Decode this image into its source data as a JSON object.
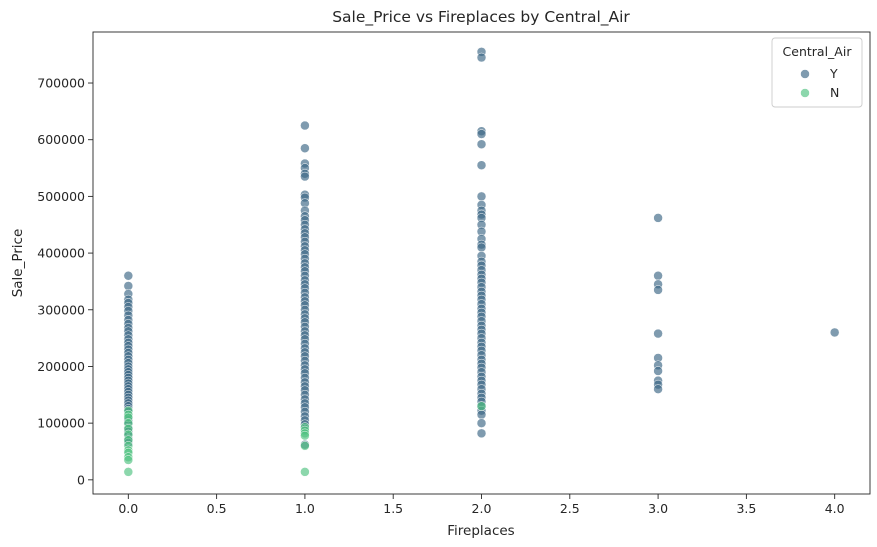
{
  "chart_data": {
    "type": "scatter",
    "title": "Sale_Price vs Fireplaces by Central_Air",
    "xlabel": "Fireplaces",
    "ylabel": "Sale_Price",
    "xlim": [
      -0.2,
      4.2
    ],
    "ylim": [
      -25000,
      790000
    ],
    "xticks": [
      "0.0",
      "0.5",
      "1.0",
      "1.5",
      "2.0",
      "2.5",
      "3.0",
      "3.5",
      "4.0"
    ],
    "xtick_values": [
      0,
      0.5,
      1,
      1.5,
      2,
      2.5,
      3,
      3.5,
      4
    ],
    "yticks": [
      "0",
      "100000",
      "200000",
      "300000",
      "400000",
      "500000",
      "600000",
      "700000"
    ],
    "ytick_values": [
      0,
      100000,
      200000,
      300000,
      400000,
      500000,
      600000,
      700000
    ],
    "grid": false,
    "legend": {
      "title": "Central_Air",
      "placement": "top-right"
    },
    "series": [
      {
        "name": "Y",
        "color": "#3b6684",
        "points": [
          [
            0,
            360000
          ],
          [
            0,
            342000
          ],
          [
            0,
            328000
          ],
          [
            0,
            318000
          ],
          [
            0,
            312000
          ],
          [
            0,
            305000
          ],
          [
            0,
            298000
          ],
          [
            0,
            290000
          ],
          [
            0,
            282000
          ],
          [
            0,
            275000
          ],
          [
            0,
            268000
          ],
          [
            0,
            262000
          ],
          [
            0,
            255000
          ],
          [
            0,
            248000
          ],
          [
            0,
            242000
          ],
          [
            0,
            236000
          ],
          [
            0,
            230000
          ],
          [
            0,
            224000
          ],
          [
            0,
            218000
          ],
          [
            0,
            212000
          ],
          [
            0,
            206000
          ],
          [
            0,
            200000
          ],
          [
            0,
            195000
          ],
          [
            0,
            190000
          ],
          [
            0,
            185000
          ],
          [
            0,
            180000
          ],
          [
            0,
            175000
          ],
          [
            0,
            170000
          ],
          [
            0,
            165000
          ],
          [
            0,
            160000
          ],
          [
            0,
            155000
          ],
          [
            0,
            150000
          ],
          [
            0,
            145000
          ],
          [
            0,
            140000
          ],
          [
            0,
            135000
          ],
          [
            0,
            130000
          ],
          [
            0,
            125000
          ],
          [
            0,
            120000
          ],
          [
            0,
            112000
          ],
          [
            0,
            105000
          ],
          [
            0,
            98000
          ],
          [
            0,
            92000
          ],
          [
            0,
            85000
          ],
          [
            0,
            78000
          ],
          [
            0,
            72000
          ],
          [
            0,
            65000
          ],
          [
            1,
            625000
          ],
          [
            1,
            585000
          ],
          [
            1,
            558000
          ],
          [
            1,
            550000
          ],
          [
            1,
            540000
          ],
          [
            1,
            535000
          ],
          [
            1,
            503000
          ],
          [
            1,
            498000
          ],
          [
            1,
            488000
          ],
          [
            1,
            475000
          ],
          [
            1,
            465000
          ],
          [
            1,
            458000
          ],
          [
            1,
            450000
          ],
          [
            1,
            442000
          ],
          [
            1,
            435000
          ],
          [
            1,
            428000
          ],
          [
            1,
            420000
          ],
          [
            1,
            412000
          ],
          [
            1,
            405000
          ],
          [
            1,
            398000
          ],
          [
            1,
            390000
          ],
          [
            1,
            382000
          ],
          [
            1,
            375000
          ],
          [
            1,
            368000
          ],
          [
            1,
            360000
          ],
          [
            1,
            352000
          ],
          [
            1,
            345000
          ],
          [
            1,
            338000
          ],
          [
            1,
            330000
          ],
          [
            1,
            322000
          ],
          [
            1,
            315000
          ],
          [
            1,
            308000
          ],
          [
            1,
            300000
          ],
          [
            1,
            292000
          ],
          [
            1,
            285000
          ],
          [
            1,
            278000
          ],
          [
            1,
            270000
          ],
          [
            1,
            262000
          ],
          [
            1,
            255000
          ],
          [
            1,
            248000
          ],
          [
            1,
            240000
          ],
          [
            1,
            232000
          ],
          [
            1,
            225000
          ],
          [
            1,
            218000
          ],
          [
            1,
            210000
          ],
          [
            1,
            202000
          ],
          [
            1,
            195000
          ],
          [
            1,
            188000
          ],
          [
            1,
            180000
          ],
          [
            1,
            172000
          ],
          [
            1,
            165000
          ],
          [
            1,
            158000
          ],
          [
            1,
            150000
          ],
          [
            1,
            142000
          ],
          [
            1,
            135000
          ],
          [
            1,
            128000
          ],
          [
            1,
            120000
          ],
          [
            1,
            112000
          ],
          [
            1,
            105000
          ],
          [
            1,
            98000
          ],
          [
            1,
            90000
          ],
          [
            1,
            62000
          ],
          [
            2,
            755000
          ],
          [
            2,
            745000
          ],
          [
            2,
            615000
          ],
          [
            2,
            610000
          ],
          [
            2,
            592000
          ],
          [
            2,
            555000
          ],
          [
            2,
            500000
          ],
          [
            2,
            485000
          ],
          [
            2,
            475000
          ],
          [
            2,
            468000
          ],
          [
            2,
            462000
          ],
          [
            2,
            450000
          ],
          [
            2,
            438000
          ],
          [
            2,
            425000
          ],
          [
            2,
            415000
          ],
          [
            2,
            410000
          ],
          [
            2,
            395000
          ],
          [
            2,
            385000
          ],
          [
            2,
            378000
          ],
          [
            2,
            370000
          ],
          [
            2,
            362000
          ],
          [
            2,
            355000
          ],
          [
            2,
            348000
          ],
          [
            2,
            340000
          ],
          [
            2,
            332000
          ],
          [
            2,
            325000
          ],
          [
            2,
            318000
          ],
          [
            2,
            310000
          ],
          [
            2,
            302000
          ],
          [
            2,
            295000
          ],
          [
            2,
            288000
          ],
          [
            2,
            280000
          ],
          [
            2,
            272000
          ],
          [
            2,
            265000
          ],
          [
            2,
            258000
          ],
          [
            2,
            250000
          ],
          [
            2,
            242000
          ],
          [
            2,
            235000
          ],
          [
            2,
            228000
          ],
          [
            2,
            220000
          ],
          [
            2,
            212000
          ],
          [
            2,
            205000
          ],
          [
            2,
            198000
          ],
          [
            2,
            190000
          ],
          [
            2,
            182000
          ],
          [
            2,
            175000
          ],
          [
            2,
            168000
          ],
          [
            2,
            160000
          ],
          [
            2,
            152000
          ],
          [
            2,
            145000
          ],
          [
            2,
            138000
          ],
          [
            2,
            130000
          ],
          [
            2,
            122000
          ],
          [
            2,
            115000
          ],
          [
            2,
            100000
          ],
          [
            2,
            82000
          ],
          [
            3,
            462000
          ],
          [
            3,
            360000
          ],
          [
            3,
            345000
          ],
          [
            3,
            335000
          ],
          [
            3,
            258000
          ],
          [
            3,
            215000
          ],
          [
            3,
            202000
          ],
          [
            3,
            192000
          ],
          [
            3,
            175000
          ],
          [
            3,
            168000
          ],
          [
            3,
            160000
          ],
          [
            4,
            260000
          ]
        ]
      },
      {
        "name": "N",
        "color": "#4ec17f",
        "points": [
          [
            0,
            122000
          ],
          [
            0,
            115000
          ],
          [
            0,
            110000
          ],
          [
            0,
            100000
          ],
          [
            0,
            90000
          ],
          [
            0,
            80000
          ],
          [
            0,
            70000
          ],
          [
            0,
            60000
          ],
          [
            0,
            52000
          ],
          [
            0,
            48000
          ],
          [
            0,
            40000
          ],
          [
            0,
            35000
          ],
          [
            0,
            14000
          ],
          [
            1,
            93000
          ],
          [
            1,
            87000
          ],
          [
            1,
            82000
          ],
          [
            1,
            78000
          ],
          [
            1,
            60000
          ],
          [
            1,
            14000
          ],
          [
            2,
            130000
          ]
        ]
      }
    ]
  }
}
